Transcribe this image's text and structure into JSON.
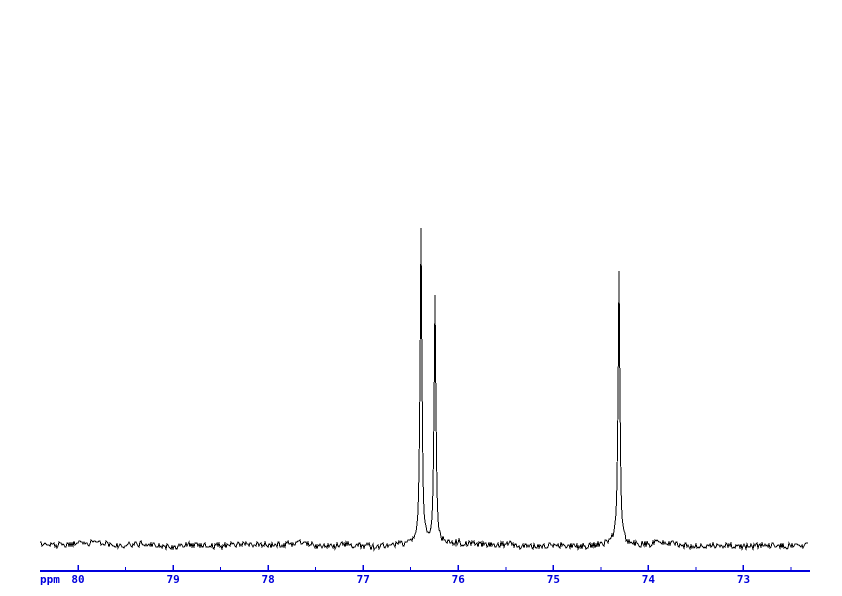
{
  "window": {
    "background": "#ffffff"
  },
  "chart_data": {
    "type": "line",
    "kind": "nmr-spectrum-trace",
    "title": "",
    "xlabel": "ppm",
    "ylabel": "",
    "x_direction": "decreasing-to-the-right",
    "x_range": [
      80.4,
      72.3
    ],
    "x_ticks_major": [
      80,
      79,
      78,
      77,
      76,
      75,
      74,
      73
    ],
    "x_minor_tick_step": 0.5,
    "y_axis_shown": false,
    "grid": false,
    "legend": false,
    "peaks": [
      {
        "ppm": 76.39,
        "rel_height": 1.0
      },
      {
        "ppm": 76.25,
        "rel_height": 0.78
      },
      {
        "ppm": 74.31,
        "rel_height": 0.86
      }
    ],
    "peak_halfwidth_ppm": 0.011,
    "noise_rel_amplitude": 0.01,
    "baseline_rel": 0.0,
    "colors": {
      "trace": "#000000",
      "axis": "#0000dd",
      "background": "#ffffff"
    }
  }
}
